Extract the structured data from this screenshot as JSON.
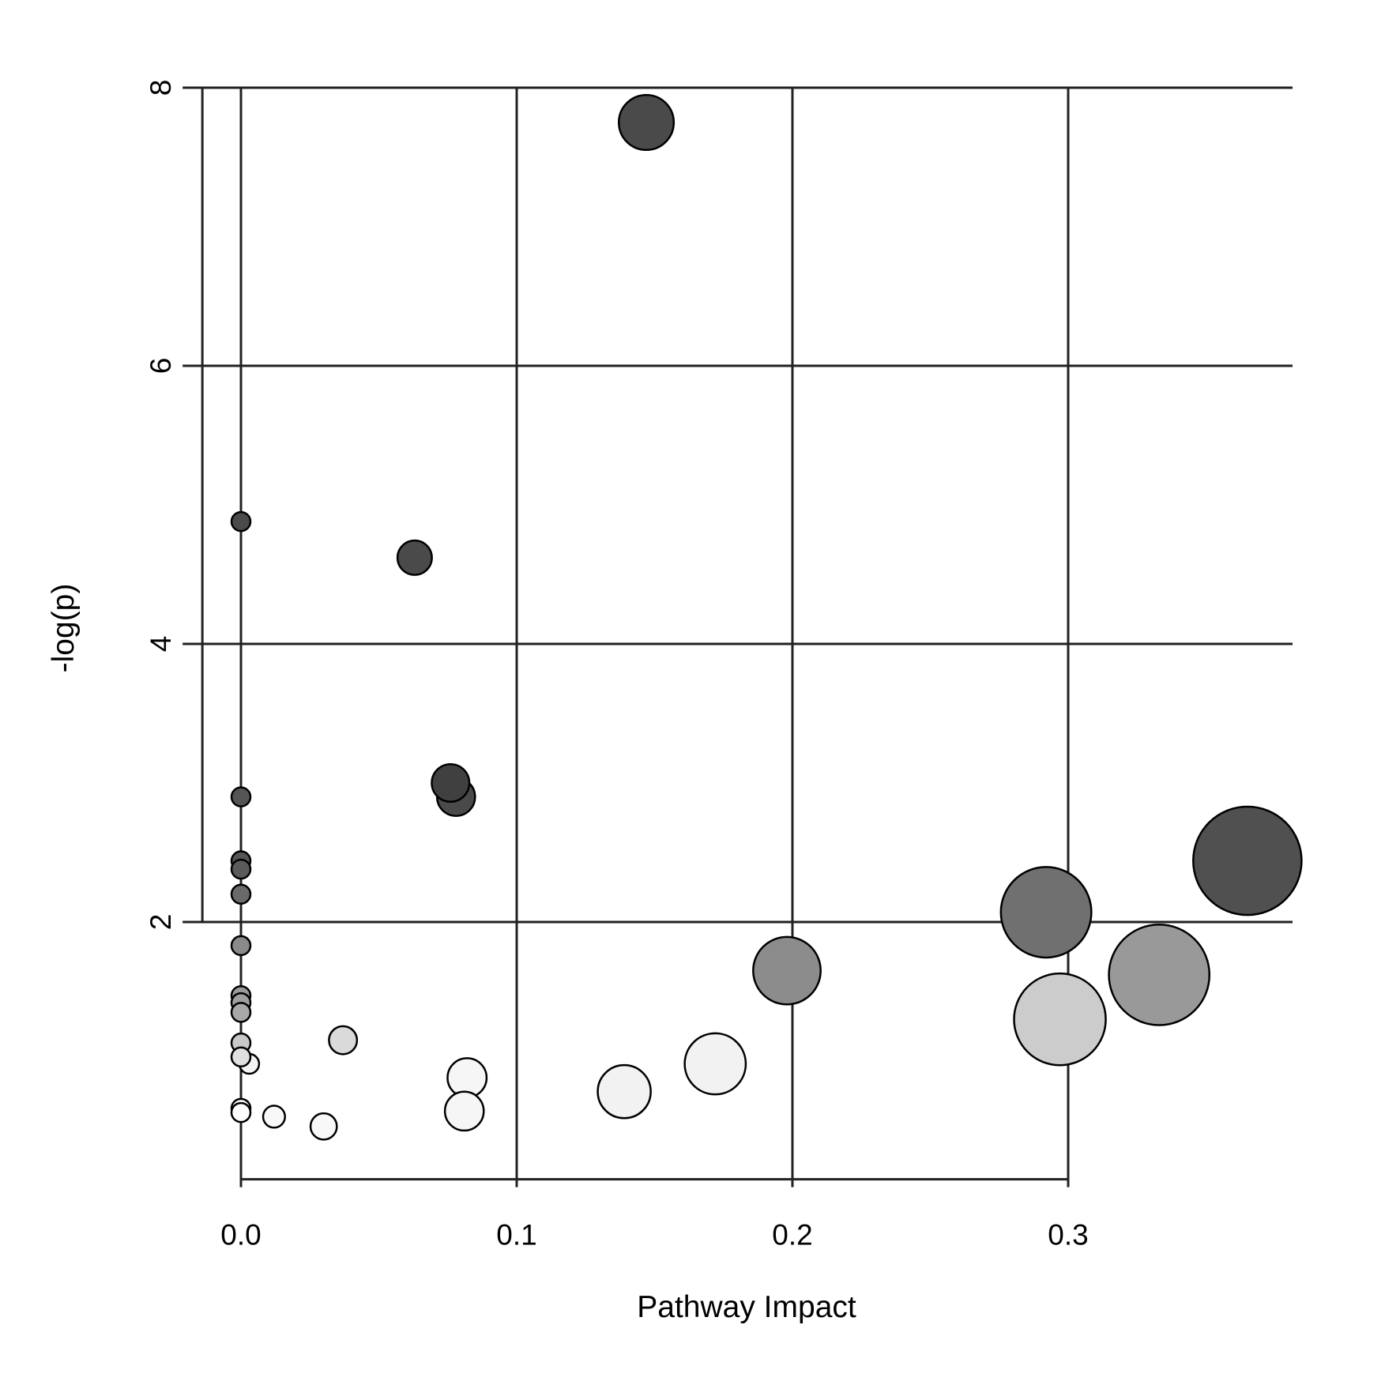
{
  "chart_data": {
    "type": "scatter",
    "title": "",
    "xlabel": "Pathway Impact",
    "ylabel": "-log(p)",
    "xlim": [
      -0.014,
      0.38
    ],
    "ylim": [
      0.15,
      8.0
    ],
    "x_ticks": [
      {
        "value": 0.0,
        "label": "0.0"
      },
      {
        "value": 0.1,
        "label": "0.1"
      },
      {
        "value": 0.2,
        "label": "0.2"
      },
      {
        "value": 0.3,
        "label": "0.3"
      }
    ],
    "y_ticks": [
      {
        "value": 2,
        "label": "2"
      },
      {
        "value": 4,
        "label": "4"
      },
      {
        "value": 6,
        "label": "6"
      },
      {
        "value": 8,
        "label": "8"
      }
    ],
    "grid": true,
    "point_size_encodes": "Pathway Impact",
    "point_color_encodes": "-log(p)",
    "points": [
      {
        "x": 0.147,
        "y": 7.75,
        "color": "#4a4a4a"
      },
      {
        "x": 0.063,
        "y": 4.62,
        "color": "#4a4a4a"
      },
      {
        "x": 0.0,
        "y": 4.88,
        "color": "#4a4a4a"
      },
      {
        "x": 0.076,
        "y": 3.0,
        "color": "#404040"
      },
      {
        "x": 0.078,
        "y": 2.9,
        "color": "#4a4a4a"
      },
      {
        "x": 0.0,
        "y": 2.9,
        "color": "#555555"
      },
      {
        "x": 0.0,
        "y": 2.44,
        "color": "#555555"
      },
      {
        "x": 0.0,
        "y": 2.38,
        "color": "#5a5a5a"
      },
      {
        "x": 0.0,
        "y": 2.2,
        "color": "#6a6a6a"
      },
      {
        "x": 0.0,
        "y": 1.83,
        "color": "#8a8a8a"
      },
      {
        "x": 0.0,
        "y": 1.47,
        "color": "#9a9a9a"
      },
      {
        "x": 0.0,
        "y": 1.42,
        "color": "#a0a0a0"
      },
      {
        "x": 0.0,
        "y": 1.35,
        "color": "#a8a8a8"
      },
      {
        "x": 0.0,
        "y": 1.13,
        "color": "#c8c8c8"
      },
      {
        "x": 0.0,
        "y": 1.03,
        "color": "#e0e0e0"
      },
      {
        "x": 0.003,
        "y": 0.98,
        "color": "#f4f4f4"
      },
      {
        "x": 0.0,
        "y": 0.66,
        "color": "#f8f8f8"
      },
      {
        "x": 0.0,
        "y": 0.63,
        "color": "#ffffff"
      },
      {
        "x": 0.012,
        "y": 0.6,
        "color": "#f8f8f8"
      },
      {
        "x": 0.03,
        "y": 0.53,
        "color": "#f8f8f8"
      },
      {
        "x": 0.037,
        "y": 1.15,
        "color": "#dadada"
      },
      {
        "x": 0.082,
        "y": 0.88,
        "color": "#f6f6f6"
      },
      {
        "x": 0.081,
        "y": 0.64,
        "color": "#f6f6f6"
      },
      {
        "x": 0.139,
        "y": 0.78,
        "color": "#f2f2f2"
      },
      {
        "x": 0.172,
        "y": 0.98,
        "color": "#f2f2f2"
      },
      {
        "x": 0.198,
        "y": 1.65,
        "color": "#8c8c8c"
      },
      {
        "x": 0.292,
        "y": 2.07,
        "color": "#707070"
      },
      {
        "x": 0.297,
        "y": 1.3,
        "color": "#cccccc"
      },
      {
        "x": 0.333,
        "y": 1.62,
        "color": "#999999"
      },
      {
        "x": 0.365,
        "y": 2.44,
        "color": "#505050"
      }
    ]
  }
}
